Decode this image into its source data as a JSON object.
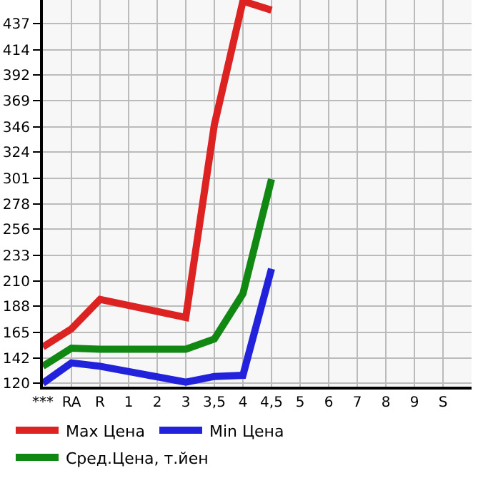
{
  "chart_data": {
    "type": "line",
    "categories": [
      "***",
      "RA",
      "R",
      "1",
      "2",
      "3",
      "3,5",
      "4",
      "4,5",
      "5",
      "6",
      "7",
      "8",
      "9",
      "S"
    ],
    "series": [
      {
        "name": "Max Цена",
        "color": "#dd2222",
        "values": [
          152,
          168,
          194,
          null,
          null,
          178,
          348,
          457,
          449,
          null,
          null,
          null,
          null,
          null,
          null
        ]
      },
      {
        "name": "Min Цена",
        "color": "#2222dd",
        "values": [
          120,
          138,
          135,
          null,
          null,
          121,
          126,
          127,
          221,
          null,
          null,
          null,
          null,
          null,
          null
        ]
      },
      {
        "name": "Сред.Цена, т.йен",
        "color": "#118811",
        "values": [
          135,
          151,
          150,
          null,
          null,
          150,
          159,
          199,
          300,
          null,
          null,
          null,
          null,
          null,
          null
        ]
      }
    ],
    "ylim": [
      117,
      458
    ],
    "yticks": [
      120,
      142,
      165,
      188,
      210,
      233,
      256,
      278,
      301,
      324,
      346,
      369,
      392,
      414,
      437
    ],
    "grid": true,
    "legend": "bottom",
    "marker": "none",
    "line_style": "solid"
  }
}
